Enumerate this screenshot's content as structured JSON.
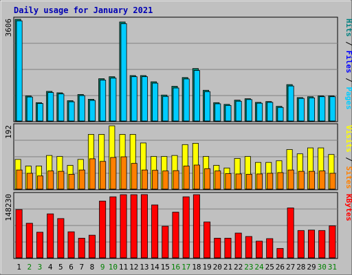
{
  "chart_data": {
    "type": "bar",
    "title": "Daily usage for January 2021",
    "x": [
      "1",
      "2",
      "3",
      "4",
      "5",
      "6",
      "7",
      "8",
      "9",
      "10",
      "11",
      "12",
      "13",
      "14",
      "15",
      "16",
      "17",
      "18",
      "19",
      "20",
      "21",
      "22",
      "23",
      "24",
      "25",
      "26",
      "27",
      "28",
      "29",
      "30",
      "31"
    ],
    "weekend_days": [
      "2",
      "3",
      "9",
      "10",
      "16",
      "17",
      "23",
      "24",
      "30",
      "31"
    ],
    "panels": [
      {
        "name": "pages-files-hits",
        "max_label": "3606",
        "ymax": 3606,
        "legend": [
          "Pages",
          "Files",
          "Hits"
        ],
        "legend_colors": [
          "#00ccff",
          "#0000ff",
          "#008080"
        ],
        "series": [
          {
            "name": "Hits",
            "color": "#00806b",
            "values": [
              3606,
              890,
              650,
              1050,
              1000,
              720,
              940,
              770,
              1500,
              1570,
              3510,
              1610,
              1610,
              1390,
              920,
              1230,
              1540,
              1860,
              1090,
              650,
              590,
              740,
              790,
              660,
              690,
              520,
              1290,
              830,
              860,
              890,
              890
            ]
          },
          {
            "name": "Pages",
            "color": "#00ccff",
            "values": [
              3550,
              850,
              620,
              1010,
              960,
              680,
              900,
              730,
              1450,
              1520,
              3450,
              1570,
              1570,
              1340,
              870,
              1170,
              1490,
              1790,
              1040,
              610,
              550,
              700,
              760,
              630,
              660,
              480,
              1240,
              800,
              820,
              860,
              860
            ]
          }
        ]
      },
      {
        "name": "sites-visits",
        "max_label": "192",
        "ymax": 192,
        "legend": [
          "Sites",
          "Visits"
        ],
        "legend_colors": [
          "#ff8000",
          "#ffff00"
        ],
        "series": [
          {
            "name": "Visits",
            "color": "#ffff00",
            "values": [
              90,
              70,
              70,
              102,
              99,
              72,
              90,
              166,
              166,
              192,
              166,
              166,
              140,
              99,
              99,
              102,
              135,
              139,
              99,
              72,
              64,
              93,
              99,
              81,
              81,
              86,
              120,
              107,
              125,
              125,
              105
            ]
          },
          {
            "name": "Sites",
            "color": "#ff8000",
            "values": [
              58,
              48,
              40,
              55,
              54,
              45,
              58,
              92,
              84,
              96,
              98,
              78,
              58,
              57,
              55,
              56,
              70,
              73,
              62,
              55,
              47,
              46,
              45,
              46,
              48,
              50,
              58,
              54,
              54,
              55,
              48
            ]
          }
        ]
      },
      {
        "name": "kbytes",
        "max_label": "148230",
        "ymax": 148230,
        "legend": [
          "KBytes"
        ],
        "legend_colors": [
          "#ff0000"
        ],
        "series": [
          {
            "name": "KBytes",
            "color": "#ff0000",
            "values": [
              113000,
              81000,
              60000,
              103000,
              92000,
              61000,
              46000,
              53000,
              133000,
              143000,
              148000,
              148000,
              148230,
              124000,
              74000,
              107000,
              143000,
              148000,
              84000,
              46000,
              46000,
              58000,
              50000,
              39000,
              45000,
              22000,
              117000,
              64000,
              65000,
              64000,
              75000
            ]
          }
        ]
      }
    ]
  }
}
